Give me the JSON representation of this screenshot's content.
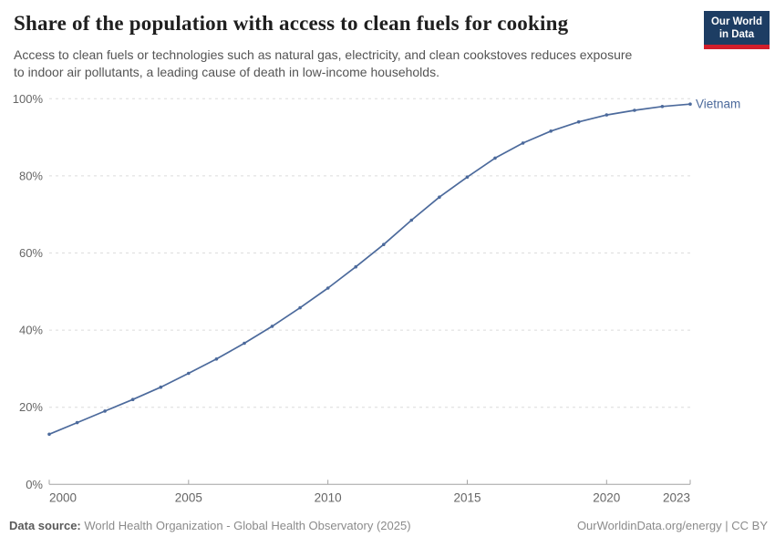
{
  "header": {
    "title": "Share of the population with access to clean fuels for cooking",
    "subtitle_lines": [
      "Access to clean fuels or technologies such as natural gas, electricity, and clean cookstoves reduces exposure",
      "to indoor air pollutants, a leading cause of death in low-income households."
    ],
    "logo": {
      "line1": "Our World",
      "line2": "in Data"
    }
  },
  "chart_data": {
    "type": "line",
    "title": "Share of the population with access to clean fuels for cooking",
    "series": [
      {
        "name": "Vietnam",
        "color": "#4c6a9c",
        "x": [
          2000,
          2001,
          2002,
          2003,
          2004,
          2005,
          2006,
          2007,
          2008,
          2009,
          2010,
          2011,
          2012,
          2013,
          2014,
          2015,
          2016,
          2017,
          2018,
          2019,
          2020,
          2021,
          2022,
          2023
        ],
        "values": [
          13.0,
          16.0,
          19.0,
          22.0,
          25.2,
          28.8,
          32.5,
          36.6,
          41.0,
          45.8,
          50.9,
          56.4,
          62.2,
          68.5,
          74.5,
          79.7,
          84.6,
          88.5,
          91.6,
          94.0,
          95.8,
          97.0,
          98.0,
          98.6
        ]
      }
    ],
    "xlabel": "",
    "ylabel": "",
    "xlim": [
      2000,
      2023
    ],
    "ylim": [
      0,
      100
    ],
    "xticks": [
      2000,
      2005,
      2010,
      2015,
      2020,
      2023
    ],
    "yticks": [
      0,
      20,
      40,
      60,
      80,
      100
    ],
    "y_tick_suffix": "%",
    "grid": true,
    "legend_position": "end-of-line"
  },
  "colors": {
    "line": "#4c6a9c",
    "grid": "#dcdcdc",
    "axis": "#a3a3a3",
    "tick_text": "#666666",
    "logo_bg": "#1d3d63",
    "logo_accent": "#d21e2b"
  },
  "footer": {
    "datasource_label": "Data source:",
    "datasource_value": "World Health Organization - Global Health Observatory (2025)",
    "rights": "OurWorldinData.org/energy | CC BY"
  }
}
